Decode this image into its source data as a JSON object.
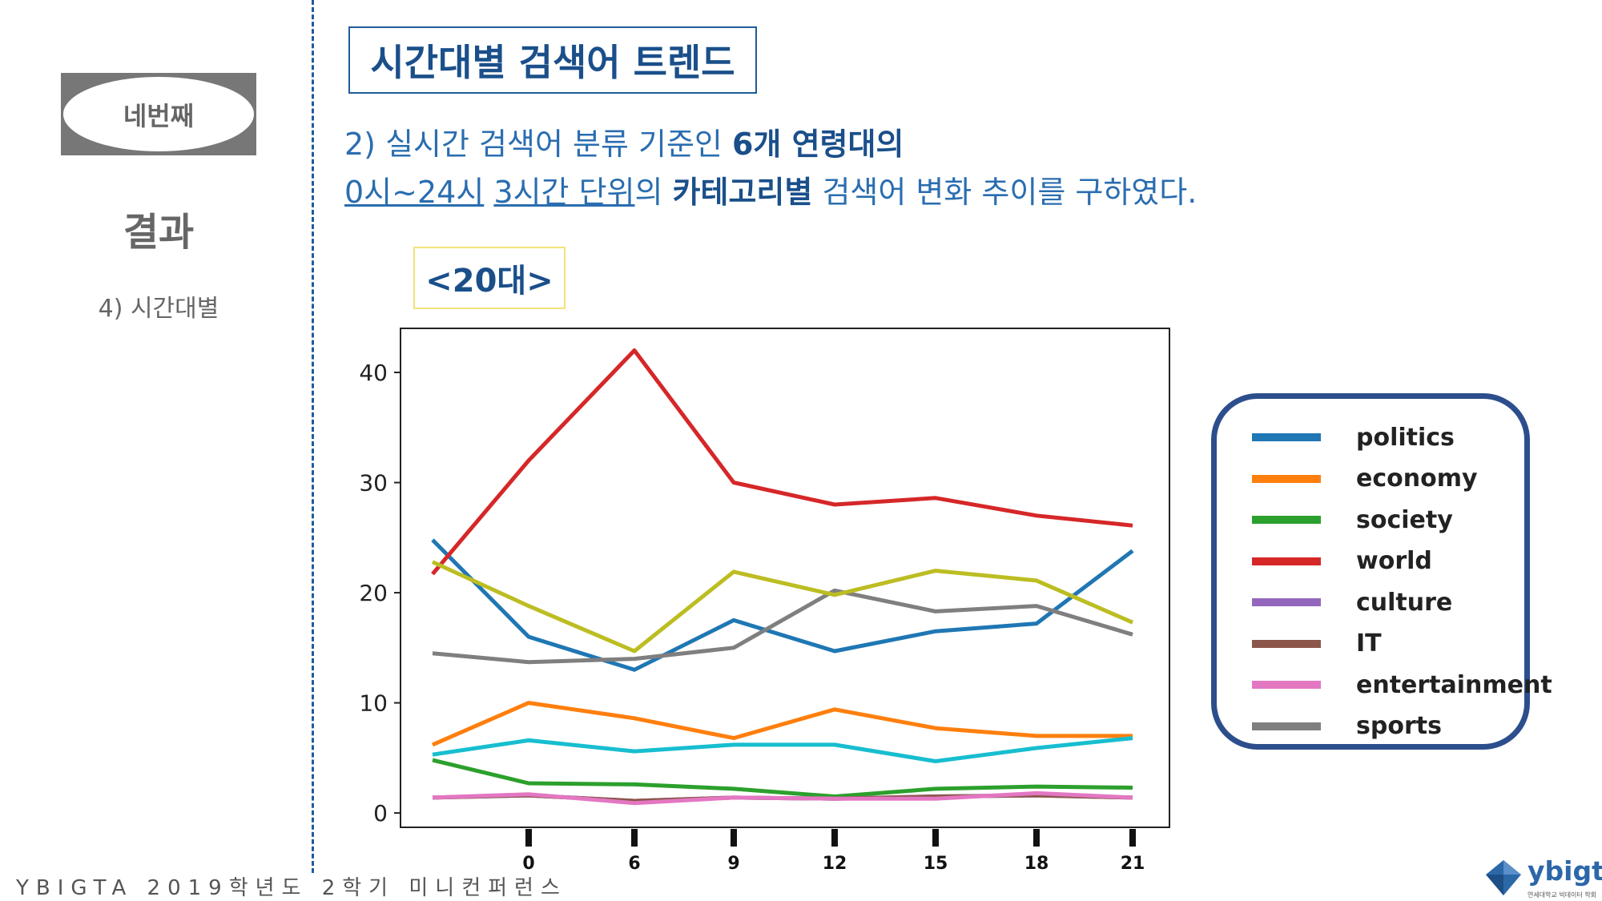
{
  "sidebar": {
    "badge": "네번째",
    "title": "결과",
    "subtitle": "4) 시간대별"
  },
  "footer": "YBIGTA 2019학년도 2학기 미니컨퍼런스",
  "slide": {
    "title": "시간대별 검색어 트렌드",
    "desc_line1_a": "2) 실시간 검색어 분류 기준인 ",
    "desc_line1_b": "6개 연령대의",
    "desc_line2_u1": "0시~24시",
    "desc_line2_sp": " ",
    "desc_line2_u2": "3시간 단위",
    "desc_line2_c": "의 ",
    "desc_line2_b": "카테고리별",
    "desc_line2_d": " 검색어 변화 추이를 구하였다.",
    "age_label": "<20대>"
  },
  "logo": {
    "word": "ybigta",
    "tiny": "연세대학교 빅데이터 학회"
  },
  "chart_data": {
    "type": "line",
    "x": [
      -3,
      0,
      6,
      9,
      12,
      15,
      18,
      21
    ],
    "x_tick_values": [
      0,
      6,
      9,
      12,
      15,
      18,
      21
    ],
    "x_tick_labels": [
      "0",
      "6",
      "9",
      "12",
      "15",
      "18",
      "21"
    ],
    "y_ticks": [
      0,
      10,
      20,
      30,
      40
    ],
    "ylim": [
      -1.3,
      44
    ],
    "series": [
      {
        "name": "politics",
        "color": "#1f77b4",
        "values": [
          24.8,
          16,
          13,
          17.5,
          14.7,
          16.5,
          17.2,
          23.8
        ]
      },
      {
        "name": "economy",
        "color": "#ff7f0e",
        "values": [
          6.2,
          10,
          8.6,
          6.8,
          9.4,
          7.7,
          7,
          7
        ]
      },
      {
        "name": "society",
        "color": "#2ca02c",
        "values": [
          4.8,
          2.7,
          2.6,
          2.2,
          1.5,
          2.2,
          2.4,
          2.3
        ]
      },
      {
        "name": "world",
        "color": "#d62728",
        "values": [
          21.7,
          32,
          42,
          30,
          28,
          28.6,
          27,
          26.1
        ]
      },
      {
        "name": "culture",
        "color": "#9467bd",
        "values": [
          1.4,
          1.6,
          1.1,
          1.4,
          1.3,
          1.5,
          1.6,
          1.4
        ]
      },
      {
        "name": "IT",
        "color": "#8c564b",
        "values": [
          1.4,
          1.6,
          1.1,
          1.4,
          1.3,
          1.5,
          1.6,
          1.4
        ]
      },
      {
        "name": "entertainment",
        "color": "#e377c2",
        "values": [
          1.4,
          1.7,
          0.9,
          1.4,
          1.3,
          1.3,
          1.8,
          1.4
        ]
      },
      {
        "name": "sports",
        "color": "#7f7f7f",
        "values": [
          14.5,
          13.7,
          14,
          15,
          20.2,
          18.3,
          18.8,
          16.2
        ]
      },
      {
        "name": "",
        "color": "#bcbd22",
        "values": [
          22.8,
          18.8,
          14.7,
          21.9,
          19.8,
          22,
          21.1,
          17.3
        ]
      },
      {
        "name": "",
        "color": "#17becf",
        "values": [
          5.3,
          6.6,
          5.6,
          6.2,
          6.2,
          4.7,
          5.9,
          6.8
        ]
      }
    ],
    "legend": {
      "position": "right",
      "entries": [
        {
          "label": "politics",
          "color": "#1f77b4"
        },
        {
          "label": "economy",
          "color": "#ff7f0e"
        },
        {
          "label": "society",
          "color": "#2ca02c"
        },
        {
          "label": "world",
          "color": "#d62728"
        },
        {
          "label": "culture",
          "color": "#9467bd"
        },
        {
          "label": "IT",
          "color": "#8c564b"
        },
        {
          "label": "entertainment",
          "color": "#e377c2"
        },
        {
          "label": "sports",
          "color": "#7f7f7f"
        }
      ]
    },
    "grid": false
  }
}
